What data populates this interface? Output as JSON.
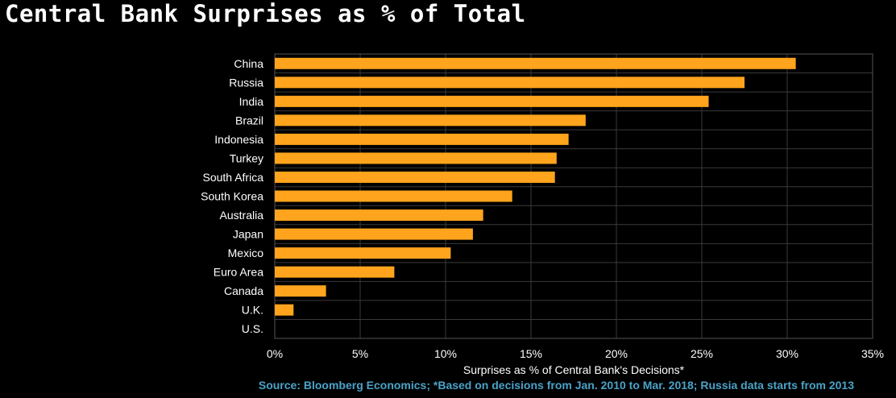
{
  "title": "Central Bank Surprises as % of Total",
  "source": "Source: Bloomberg Economics; *Based on decisions from Jan. 2010 to Mar. 2018; Russia data starts from 2013",
  "colors": {
    "bar": "#ffa41c",
    "background": "#000000",
    "grid": "#3a3a3a",
    "text": "#ffffff",
    "source": "#4aa3c8"
  },
  "chart_data": {
    "type": "bar",
    "orientation": "horizontal",
    "xlabel": "Surprises as % of Central Bank's Decisions*",
    "xlim": [
      0,
      35
    ],
    "xticks": [
      "0%",
      "5%",
      "10%",
      "15%",
      "20%",
      "25%",
      "30%",
      "35%"
    ],
    "grid": true,
    "categories": [
      "China",
      "Russia",
      "India",
      "Brazil",
      "Indonesia",
      "Turkey",
      "South Africa",
      "South Korea",
      "Australia",
      "Japan",
      "Mexico",
      "Euro Area",
      "Canada",
      "U.K.",
      "U.S."
    ],
    "values": [
      30.5,
      27.5,
      25.4,
      18.2,
      17.2,
      16.5,
      16.4,
      13.9,
      12.2,
      11.6,
      10.3,
      7.0,
      3.0,
      1.1,
      0
    ]
  }
}
